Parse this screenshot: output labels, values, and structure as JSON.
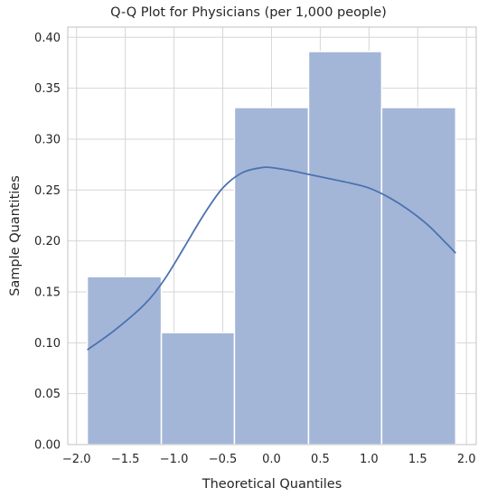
{
  "chart_data": {
    "type": "bar",
    "title": "Q-Q Plot for Physicians (per 1,000 people)",
    "xlabel": "Theoretical Quantiles",
    "ylabel": "Sample Quantities",
    "xlim": [
      -2.09,
      2.1
    ],
    "ylim": [
      0,
      0.41
    ],
    "xticks": [
      -2.0,
      -1.5,
      -1.0,
      -0.5,
      0.0,
      0.5,
      1.0,
      1.5,
      2.0
    ],
    "xtick_labels": [
      "−2.0",
      "−1.5",
      "−1.0",
      "−0.5",
      "0.0",
      "0.5",
      "1.0",
      "1.5",
      "2.0"
    ],
    "yticks": [
      0.0,
      0.05,
      0.1,
      0.15,
      0.2,
      0.25,
      0.3,
      0.35,
      0.4
    ],
    "ytick_labels": [
      "0.00",
      "0.05",
      "0.10",
      "0.15",
      "0.20",
      "0.25",
      "0.30",
      "0.35",
      "0.40"
    ],
    "grid": true,
    "bars": [
      {
        "x0": -1.89,
        "x1": -1.13,
        "value": 0.165
      },
      {
        "x0": -1.13,
        "x1": -0.38,
        "value": 0.11
      },
      {
        "x0": -0.38,
        "x1": 0.38,
        "value": 0.331
      },
      {
        "x0": 0.38,
        "x1": 1.13,
        "value": 0.386
      },
      {
        "x0": 1.13,
        "x1": 1.89,
        "value": 0.331
      }
    ],
    "kde_curve": {
      "x": [
        -1.89,
        -1.6,
        -1.3,
        -1.1,
        -0.9,
        -0.7,
        -0.5,
        -0.3,
        -0.1,
        0.0,
        0.2,
        0.4,
        0.6,
        0.8,
        1.0,
        1.2,
        1.4,
        1.6,
        1.8,
        1.89
      ],
      "y": [
        0.093,
        0.113,
        0.138,
        0.162,
        0.193,
        0.225,
        0.252,
        0.267,
        0.272,
        0.272,
        0.269,
        0.265,
        0.261,
        0.257,
        0.252,
        0.243,
        0.231,
        0.216,
        0.197,
        0.188
      ]
    },
    "colors": {
      "bar_fill": "#a3b6d7",
      "bar_edge": "#ffffff",
      "curve": "#4c72b0",
      "grid": "#d6d6d6",
      "axis_edge": "#cccccc",
      "text": "#262626"
    }
  }
}
